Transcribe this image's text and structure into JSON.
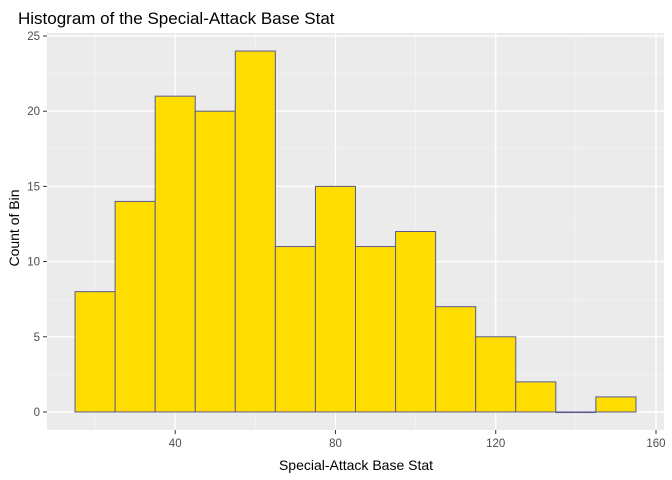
{
  "chart_data": {
    "type": "bar",
    "title": "Histogram of the Special-Attack Base Stat",
    "xlabel": "Special-Attack Base Stat",
    "ylabel": "Count of Bin",
    "bin_width": 10,
    "bins": [
      {
        "x0": 15,
        "x1": 25,
        "count": 8
      },
      {
        "x0": 25,
        "x1": 35,
        "count": 14
      },
      {
        "x0": 35,
        "x1": 45,
        "count": 21
      },
      {
        "x0": 45,
        "x1": 55,
        "count": 20
      },
      {
        "x0": 55,
        "x1": 65,
        "count": 24
      },
      {
        "x0": 65,
        "x1": 75,
        "count": 11
      },
      {
        "x0": 75,
        "x1": 85,
        "count": 15
      },
      {
        "x0": 85,
        "x1": 95,
        "count": 11
      },
      {
        "x0": 95,
        "x1": 105,
        "count": 12
      },
      {
        "x0": 105,
        "x1": 115,
        "count": 7
      },
      {
        "x0": 115,
        "x1": 125,
        "count": 5
      },
      {
        "x0": 125,
        "x1": 135,
        "count": 2
      },
      {
        "x0": 135,
        "x1": 145,
        "count": 0
      },
      {
        "x0": 145,
        "x1": 155,
        "count": 1
      }
    ],
    "xlim": [
      8,
      162
    ],
    "ylim": [
      -1.2,
      25.2
    ],
    "x_ticks": [
      40,
      80,
      120,
      160
    ],
    "y_ticks": [
      0,
      5,
      10,
      15,
      20,
      25
    ],
    "grid": true,
    "legend": "none",
    "colors": {
      "bar_fill": "#FFDD00",
      "bar_outline": "#5A5A8C",
      "panel_background": "#EBEBEB",
      "grid_major": "#FFFFFF",
      "grid_minor": "#F5F5F5"
    }
  }
}
